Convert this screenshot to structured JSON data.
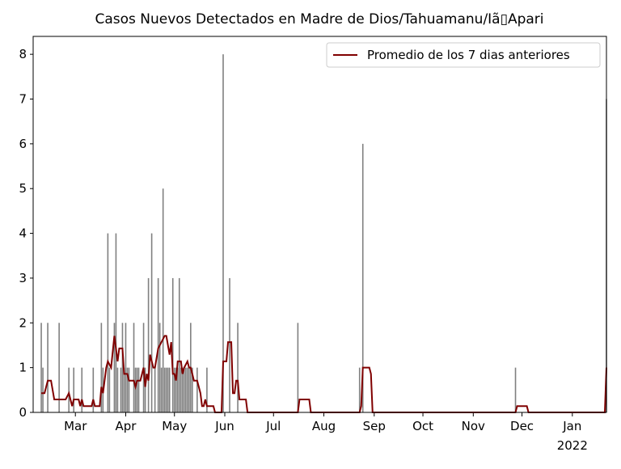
{
  "chart_data": {
    "type": "combo",
    "title": "Casos Nuevos Detectados en Madre de Dios/Tahuamanu/Iã▯Apari",
    "xlim": [
      33,
      386
    ],
    "ylim": [
      0,
      8.4
    ],
    "xticks": [
      {
        "value": 59,
        "label": "Mar"
      },
      {
        "value": 90,
        "label": "Apr"
      },
      {
        "value": 120,
        "label": "May"
      },
      {
        "value": 151,
        "label": "Jun"
      },
      {
        "value": 181,
        "label": "Jul"
      },
      {
        "value": 212,
        "label": "Aug"
      },
      {
        "value": 243,
        "label": "Sep"
      },
      {
        "value": 273,
        "label": "Oct"
      },
      {
        "value": 304,
        "label": "Nov"
      },
      {
        "value": 334,
        "label": "Dec"
      },
      {
        "value": 365,
        "label": "Jan"
      }
    ],
    "x_offset_label": "2022",
    "yticks": [
      0,
      1,
      2,
      3,
      4,
      5,
      6,
      7,
      8
    ],
    "legend": "upper right",
    "series": [
      {
        "type": "bar",
        "color": "#808080",
        "x": [
          38,
          39,
          42,
          49,
          55,
          58,
          63,
          70,
          75,
          76,
          79,
          80,
          83,
          84,
          85,
          87,
          88,
          89,
          90,
          91,
          92,
          95,
          96,
          97,
          98,
          101,
          102,
          104,
          106,
          108,
          110,
          111,
          112,
          113,
          114,
          115,
          116,
          117,
          119,
          120,
          121,
          122,
          123,
          124,
          125,
          126,
          127,
          128,
          129,
          130,
          131,
          134,
          140,
          150,
          154,
          159,
          196,
          234,
          236,
          330,
          386
        ],
        "values": [
          2,
          1,
          2,
          2,
          1,
          1,
          1,
          1,
          2,
          1,
          4,
          1,
          2,
          4,
          1,
          1,
          2,
          1,
          2,
          1,
          1,
          2,
          1,
          1,
          1,
          2,
          1,
          3,
          4,
          1,
          3,
          2,
          1,
          5,
          1,
          1,
          1,
          1,
          3,
          1,
          1,
          1,
          3,
          1,
          1,
          1,
          1,
          1,
          1,
          2,
          1,
          1,
          1,
          8,
          3,
          2,
          2,
          1,
          6,
          1,
          7
        ]
      },
      {
        "type": "line",
        "name": "Promedio de los 7 dias anteriores",
        "color": "#800000",
        "x": [
          38,
          40,
          42,
          44,
          46,
          53,
          55,
          57,
          58,
          61,
          62,
          63,
          64,
          69,
          70,
          71,
          74,
          75,
          76,
          78,
          79,
          81,
          83,
          85,
          86,
          88,
          89,
          91,
          92,
          95,
          96,
          97,
          99,
          101,
          102,
          103,
          104,
          105,
          107,
          108,
          110,
          112,
          114,
          115,
          117,
          118,
          119,
          120,
          121,
          122,
          124,
          125,
          126,
          128,
          129,
          130,
          131,
          132,
          134,
          136,
          137,
          138,
          139,
          140,
          144,
          145,
          149,
          150,
          152,
          153,
          155,
          156,
          157,
          158,
          159,
          160,
          164,
          165,
          196,
          197,
          203,
          204,
          234,
          235,
          236,
          240,
          241,
          242,
          330,
          331,
          337,
          338,
          385,
          386
        ],
        "values": [
          0.43,
          0.43,
          0.71,
          0.71,
          0.29,
          0.29,
          0.43,
          0.14,
          0.29,
          0.29,
          0.14,
          0.29,
          0.14,
          0.14,
          0.29,
          0.14,
          0.14,
          0.57,
          0.43,
          1.0,
          1.14,
          1.0,
          1.71,
          1.14,
          1.43,
          1.43,
          0.86,
          0.86,
          0.71,
          0.71,
          0.57,
          0.71,
          0.71,
          1.0,
          0.57,
          0.86,
          0.71,
          1.29,
          1.0,
          1.0,
          1.43,
          1.57,
          1.71,
          1.71,
          1.29,
          1.57,
          0.86,
          0.86,
          0.71,
          1.14,
          1.14,
          0.86,
          1.0,
          1.14,
          1.0,
          1.0,
          0.86,
          0.71,
          0.71,
          0.43,
          0.14,
          0.14,
          0.29,
          0.14,
          0.14,
          0,
          0,
          1.14,
          1.14,
          1.57,
          1.57,
          0.43,
          0.43,
          0.71,
          0.71,
          0.29,
          0.29,
          0,
          0,
          0.29,
          0.29,
          0,
          0,
          0.14,
          1.0,
          1.0,
          0.86,
          0,
          0,
          0.14,
          0.14,
          0,
          0,
          1.0
        ]
      }
    ]
  }
}
